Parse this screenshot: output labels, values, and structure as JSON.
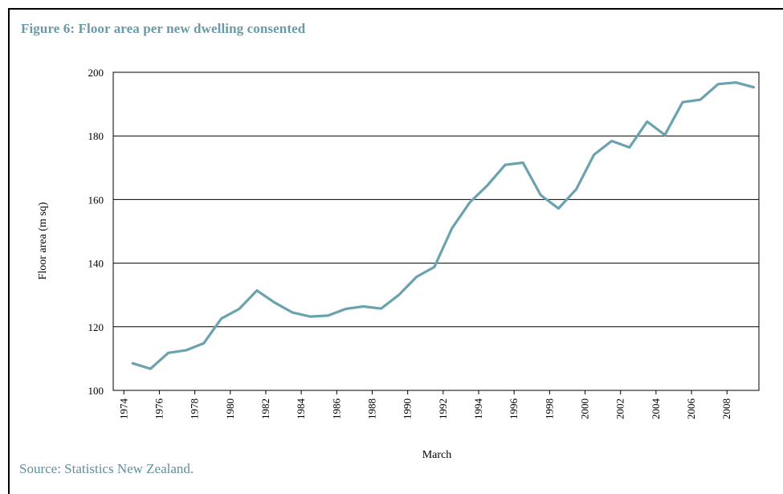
{
  "title": "Figure 6: Floor area per new dwelling consented",
  "source": "Source: Statistics New Zealand.",
  "colors": {
    "line": "#6aa2ae",
    "title": "#6a9aa6",
    "grid": "#000000"
  },
  "chart_data": {
    "type": "line",
    "xlabel": "March",
    "ylabel": "Floor area (m sq)",
    "ylim": [
      100,
      200
    ],
    "yticks": [
      100,
      120,
      140,
      160,
      180,
      200
    ],
    "xticks": [
      1974,
      1976,
      1978,
      1980,
      1982,
      1984,
      1986,
      1988,
      1990,
      1992,
      1994,
      1996,
      1998,
      2000,
      2002,
      2004,
      2006,
      2008
    ],
    "xlim": [
      1973.4,
      2009.8
    ],
    "grid": "horizontal",
    "series": [
      {
        "x": [
          1974.5,
          1975.5,
          1976.5,
          1977.5,
          1978.5,
          1979.5,
          1980.5,
          1981.5,
          1982.5,
          1983.5,
          1984.5,
          1985.5,
          1986.5,
          1987.5,
          1988.5,
          1989.5,
          1990.5,
          1991.5,
          1992.5,
          1993.5,
          1994.5,
          1995.5,
          1996.5,
          1997.5,
          1998.5,
          1999.5,
          2000.5,
          2001.5,
          2002.5,
          2003.5,
          2004.5,
          2005.5,
          2006.5,
          2007.5,
          2008.5,
          2009.5
        ],
        "values": [
          108.5,
          106.8,
          111.8,
          112.6,
          114.8,
          122.6,
          125.6,
          131.4,
          127.6,
          124.5,
          123.2,
          123.5,
          125.6,
          126.4,
          125.7,
          130.0,
          135.7,
          138.8,
          151.0,
          159.1,
          164.5,
          170.9,
          171.6,
          161.4,
          157.2,
          163.2,
          174.1,
          178.4,
          176.4,
          184.5,
          180.3,
          190.6,
          191.4,
          196.3,
          196.8,
          195.3
        ]
      }
    ]
  }
}
